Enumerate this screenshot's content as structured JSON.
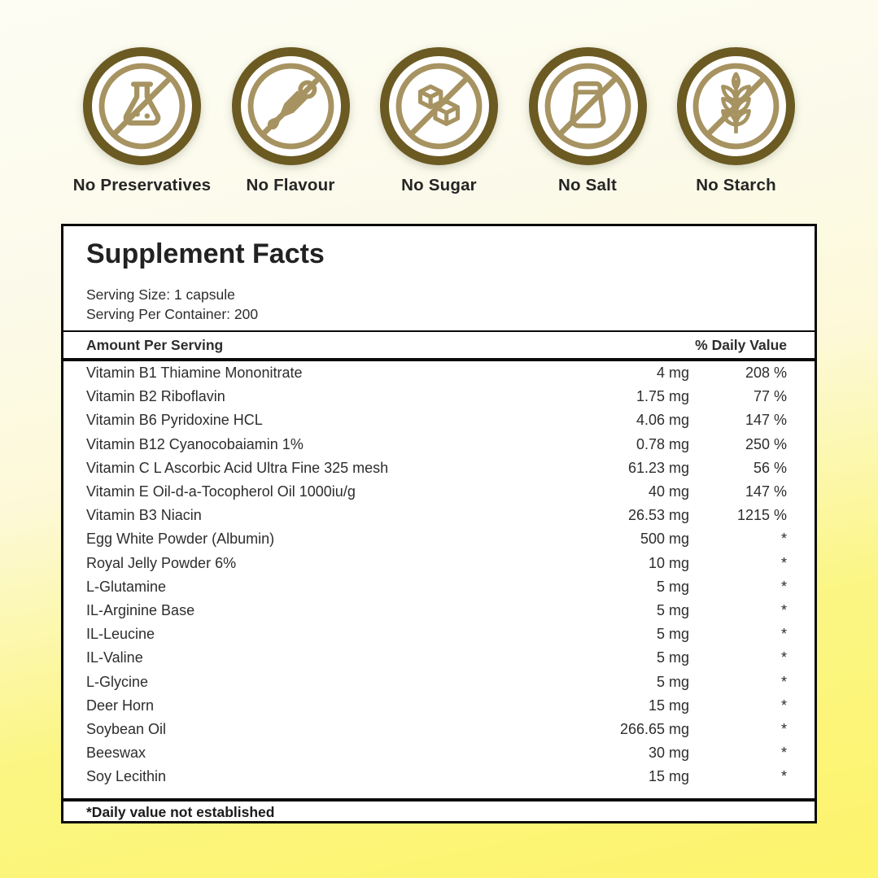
{
  "colors": {
    "background_top": "#fdfdf4",
    "background_bottom": "#fcf46b",
    "icon_ring": "#6b5a22",
    "icon_glyph": "#a69361",
    "panel_border": "#0a0a0a",
    "text": "#2d2d2d"
  },
  "badges": [
    {
      "label": "No Preservatives",
      "icon": "flask-icon"
    },
    {
      "label": "No Flavour",
      "icon": "dropper-icon"
    },
    {
      "label": "No Sugar",
      "icon": "sugar-cubes-icon"
    },
    {
      "label": "No Salt",
      "icon": "salt-shaker-icon"
    },
    {
      "label": "No Starch",
      "icon": "wheat-icon"
    }
  ],
  "supplement": {
    "title": "Supplement Facts",
    "serving_size": "Serving Size: 1 capsule",
    "serving_per_container": "Serving Per Container: 200",
    "columns": {
      "amount_header": "Amount Per Serving",
      "daily_value_header": "% Daily Value"
    },
    "rows": [
      {
        "name": "Vitamin B1 Thiamine Mononitrate",
        "amount": "4 mg",
        "dv": "208 %"
      },
      {
        "name": "Vitamin B2 Riboflavin",
        "amount": "1.75 mg",
        "dv": "77 %"
      },
      {
        "name": "Vitamin B6 Pyridoxine HCL",
        "amount": "4.06 mg",
        "dv": "147 %"
      },
      {
        "name": "Vitamin B12 Cyanocobaiamin 1%",
        "amount": "0.78 mg",
        "dv": "250 %"
      },
      {
        "name": "Vitamin C L Ascorbic Acid Ultra Fine 325 mesh",
        "amount": "61.23 mg",
        "dv": "56 %"
      },
      {
        "name": "Vitamin E Oil-d-a-Tocopherol Oil 1000iu/g",
        "amount": "40 mg",
        "dv": "147 %"
      },
      {
        "name": "Vitamin B3 Niacin",
        "amount": "26.53 mg",
        "dv": "1215 %"
      },
      {
        "name": "Egg White Powder (Albumin)",
        "amount": "500 mg",
        "dv": "*"
      },
      {
        "name": "Royal Jelly Powder 6%",
        "amount": "10 mg",
        "dv": "*"
      },
      {
        "name": "L-Glutamine",
        "amount": "5 mg",
        "dv": "*"
      },
      {
        "name": "IL-Arginine Base",
        "amount": "5 mg",
        "dv": "*"
      },
      {
        "name": "IL-Leucine",
        "amount": "5 mg",
        "dv": "*"
      },
      {
        "name": "IL-Valine",
        "amount": "5 mg",
        "dv": "*"
      },
      {
        "name": "L-Glycine",
        "amount": "5 mg",
        "dv": "*"
      },
      {
        "name": "Deer Horn",
        "amount": "15 mg",
        "dv": "*"
      },
      {
        "name": "Soybean Oil",
        "amount": "266.65 mg",
        "dv": "*"
      },
      {
        "name": "Beeswax",
        "amount": "30 mg",
        "dv": "*"
      },
      {
        "name": "Soy Lecithin",
        "amount": "15 mg",
        "dv": "*"
      }
    ],
    "footnote": "*Daily value not established"
  }
}
